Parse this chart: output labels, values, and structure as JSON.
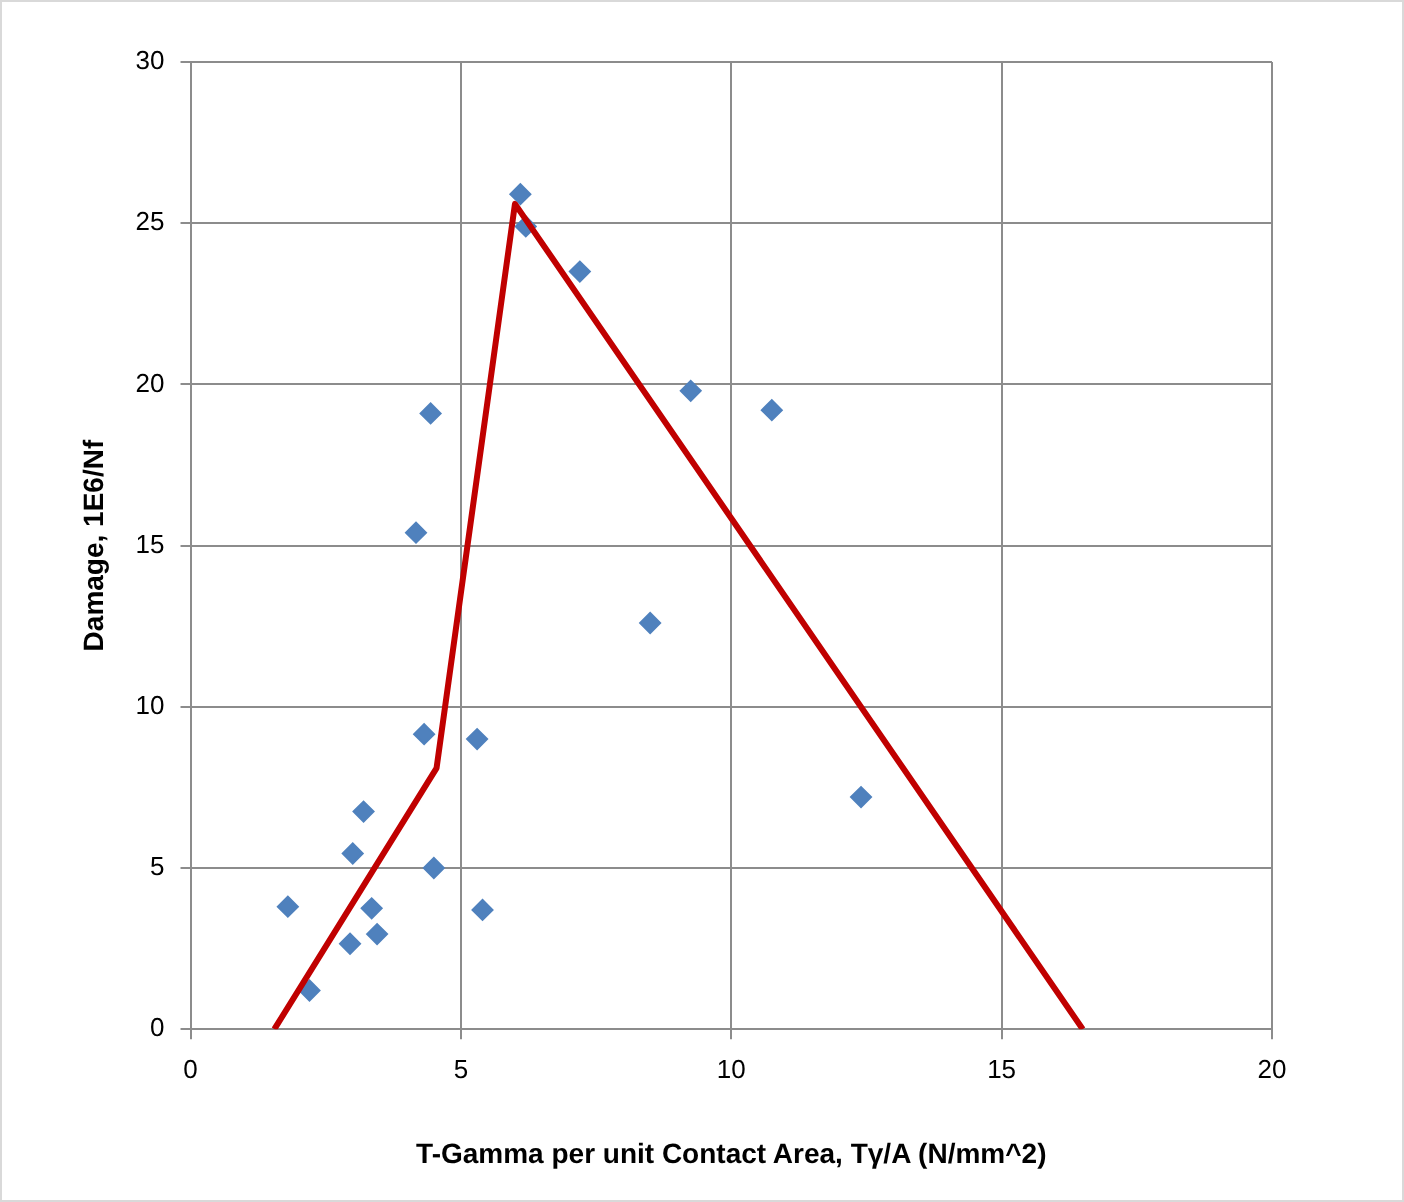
{
  "chart_data": {
    "type": "scatter",
    "xlabel": "T-Gamma per unit Contact Area, Tγ/A (N/mm^2)",
    "ylabel": "Damage, 1E6/Nf",
    "xlim": [
      0,
      20
    ],
    "ylim": [
      0,
      30
    ],
    "xticks": [
      0,
      5,
      10,
      15,
      20
    ],
    "yticks": [
      0,
      5,
      10,
      15,
      20,
      25,
      30
    ],
    "grid": true,
    "legend": false,
    "marker": "diamond",
    "series": [
      {
        "color": "#4f81bd",
        "x": [
          1.8,
          2.2,
          2.95,
          3.2,
          3.0,
          3.35,
          3.45,
          4.17,
          4.44,
          4.32,
          4.5,
          5.3,
          5.4,
          6.1,
          6.2,
          7.2,
          8.5,
          9.25,
          10.75,
          12.4
        ],
        "values": [
          3.8,
          1.2,
          2.65,
          6.75,
          5.45,
          3.75,
          2.95,
          15.4,
          19.1,
          9.15,
          5.0,
          9.0,
          3.7,
          25.9,
          24.9,
          23.5,
          12.6,
          19.8,
          19.2,
          7.2
        ]
      },
      {
        "type": "line",
        "color": "#c00000",
        "marker": "none",
        "x": [
          1.55,
          4.55,
          6.0,
          16.5
        ],
        "values": [
          0,
          8.1,
          25.6,
          0
        ]
      }
    ]
  }
}
